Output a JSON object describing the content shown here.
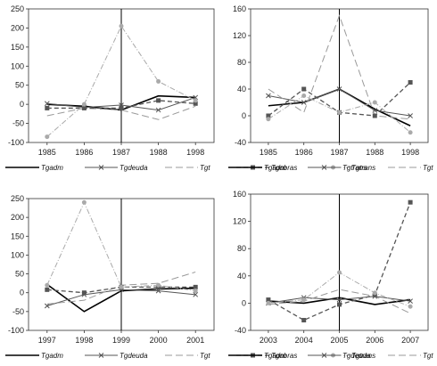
{
  "chart_data": [
    {
      "type": "line",
      "x": [
        "1985",
        "1986",
        "1987",
        "1988",
        "1998"
      ],
      "ylim": [
        -100,
        250
      ],
      "yticks": [
        -100,
        -50,
        0,
        50,
        100,
        150,
        200,
        250
      ],
      "vline_x": "1987",
      "series": [
        {
          "name": "Tgadm",
          "style": "solid",
          "color": "#000000",
          "values": [
            0,
            -5,
            -15,
            22,
            18
          ]
        },
        {
          "name": "Tgdeuda",
          "style": "x-marker",
          "color": "#555555",
          "values": [
            2,
            -8,
            -2,
            -15,
            18
          ]
        },
        {
          "name": "Tgt",
          "style": "long-dash",
          "color": "#999999",
          "values": [
            -30,
            -10,
            -15,
            -40,
            -5
          ]
        },
        {
          "name": "Tgobras",
          "style": "dash-square",
          "color": "#555555",
          "values": [
            -10,
            -10,
            -10,
            10,
            2
          ]
        },
        {
          "name": "Tgtrans",
          "style": "dash-dot",
          "color": "#aaaaaa",
          "values": [
            -85,
            0,
            205,
            60,
            10
          ]
        }
      ],
      "legend_order": [
        "Tgadm",
        "Tgdeuda",
        "Tgt",
        "Tgobras",
        "Tgtrans"
      ]
    },
    {
      "type": "line",
      "x": [
        "1985",
        "1986",
        "1987",
        "1988",
        "1998"
      ],
      "ylim": [
        -40,
        160
      ],
      "yticks": [
        -40,
        0,
        40,
        80,
        120,
        160
      ],
      "vline_x": "1987",
      "series": [
        {
          "name": "Tgadm",
          "style": "solid",
          "color": "#000000",
          "values": [
            15,
            20,
            40,
            10,
            -15
          ]
        },
        {
          "name": "Tgtrans",
          "style": "x-marker",
          "color": "#555555",
          "values": [
            30,
            20,
            40,
            8,
            0
          ]
        },
        {
          "name": "Tgt",
          "style": "long-dash",
          "color": "#999999",
          "values": [
            40,
            5,
            150,
            0,
            -5
          ]
        },
        {
          "name": "Tgobras",
          "style": "dash-square",
          "color": "#555555",
          "values": [
            0,
            40,
            5,
            0,
            50
          ]
        },
        {
          "name": "Tgdeuda",
          "style": "dash-dot",
          "color": "#aaaaaa",
          "values": [
            -5,
            30,
            5,
            20,
            -25
          ]
        }
      ],
      "legend_order": [
        "Tgadm",
        "Tgtrans",
        "Tgt",
        "Tgobras",
        "Tgdeuda"
      ]
    },
    {
      "type": "line",
      "x": [
        "1997",
        "1998",
        "1999",
        "2000",
        "2001"
      ],
      "ylim": [
        -100,
        250
      ],
      "yticks": [
        -100,
        -50,
        0,
        50,
        100,
        150,
        200,
        250
      ],
      "vline_x": "1999",
      "series": [
        {
          "name": "Tgadm",
          "style": "solid",
          "color": "#000000",
          "values": [
            22,
            -50,
            5,
            10,
            12
          ]
        },
        {
          "name": "Tgdeuda",
          "style": "x-marker",
          "color": "#555555",
          "values": [
            -35,
            -5,
            8,
            5,
            -5
          ]
        },
        {
          "name": "Tgt",
          "style": "long-dash",
          "color": "#999999",
          "values": [
            -30,
            -20,
            20,
            25,
            55
          ]
        },
        {
          "name": "Tgobras",
          "style": "dash-square",
          "color": "#555555",
          "values": [
            8,
            0,
            15,
            15,
            15
          ]
        },
        {
          "name": "Tgtrans",
          "style": "dash-dot",
          "color": "#aaaaaa",
          "values": [
            20,
            240,
            15,
            20,
            5
          ]
        }
      ],
      "legend_order": [
        "Tgadm",
        "Tgdeuda",
        "Tgt",
        "Tgobras",
        "Tgtrans"
      ]
    },
    {
      "type": "line",
      "x": [
        "2003",
        "2004",
        "2005",
        "2006",
        "2007"
      ],
      "ylim": [
        -40,
        160
      ],
      "yticks": [
        -40,
        0,
        40,
        80,
        120,
        160
      ],
      "vline_x": "2005",
      "series": [
        {
          "name": "Tgadm",
          "style": "solid",
          "color": "#000000",
          "values": [
            3,
            0,
            8,
            -2,
            5
          ]
        },
        {
          "name": "Tgdeuda",
          "style": "x-marker",
          "color": "#555555",
          "values": [
            0,
            8,
            5,
            10,
            3
          ]
        },
        {
          "name": "Tgt",
          "style": "long-dash",
          "color": "#999999",
          "values": [
            -2,
            3,
            20,
            10,
            -15
          ]
        },
        {
          "name": "Tgobras",
          "style": "dash-square",
          "color": "#555555",
          "values": [
            5,
            -25,
            -2,
            12,
            148
          ]
        },
        {
          "name": "Tgtrans",
          "style": "dash-dot",
          "color": "#aaaaaa",
          "values": [
            0,
            5,
            45,
            15,
            -5
          ]
        }
      ],
      "legend_order": [
        "Tgadm",
        "Tgdeuda",
        "Tgt",
        "Tgobras",
        "Tgtrans"
      ]
    }
  ]
}
